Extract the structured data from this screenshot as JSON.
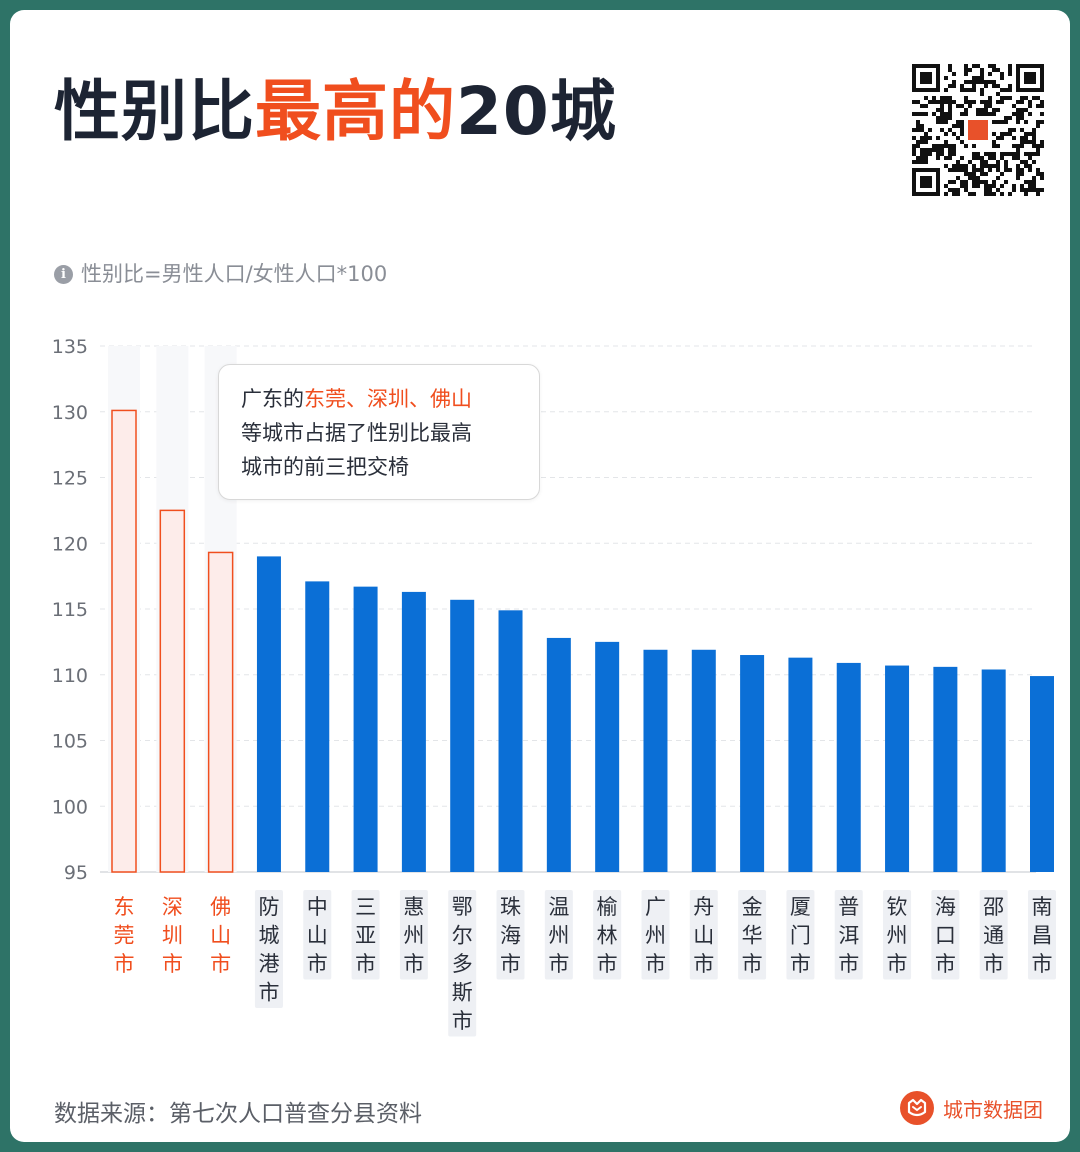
{
  "title": {
    "part1": "性别比",
    "part2": "最高的",
    "part3": "20城"
  },
  "note": {
    "icon": "info-icon",
    "text": "性别比=男性人口/女性人口*100"
  },
  "callout": {
    "line1_prefix": "广东的",
    "line1_highlight": "东莞、深圳、佛山",
    "line2": "等城市占据了性别比最高",
    "line3": "城市的前三把交椅"
  },
  "source": "数据来源：第七次人口普查分县资料",
  "brand": "城市数据团",
  "colors": {
    "highlight": "#f04e1e",
    "highlight_fill": "#fdecea",
    "bar": "#0b6fd6",
    "label_bg": "#eef0f4",
    "label_text": "#2a2f3a"
  },
  "chart_data": {
    "type": "bar",
    "title": "性别比最高的20城",
    "xlabel": "",
    "ylabel": "",
    "ylim": [
      95,
      135
    ],
    "yticks": [
      135,
      130,
      125,
      120,
      115,
      110,
      105,
      100,
      95
    ],
    "grid": true,
    "categories": [
      "东莞市",
      "深圳市",
      "佛山市",
      "防城港市",
      "中山市",
      "三亚市",
      "惠州市",
      "鄂尔多斯市",
      "珠海市",
      "温州市",
      "榆林市",
      "广州市",
      "舟山市",
      "金华市",
      "厦门市",
      "普洱市",
      "钦州市",
      "海口市",
      "邵通市",
      "南昌市"
    ],
    "values": [
      130.1,
      122.5,
      119.3,
      119.0,
      117.1,
      116.7,
      116.3,
      115.7,
      114.9,
      112.8,
      112.5,
      111.9,
      111.9,
      111.5,
      111.3,
      110.9,
      110.7,
      110.6,
      110.4,
      109.9
    ],
    "highlighted": [
      "东莞市",
      "深圳市",
      "佛山市"
    ]
  }
}
